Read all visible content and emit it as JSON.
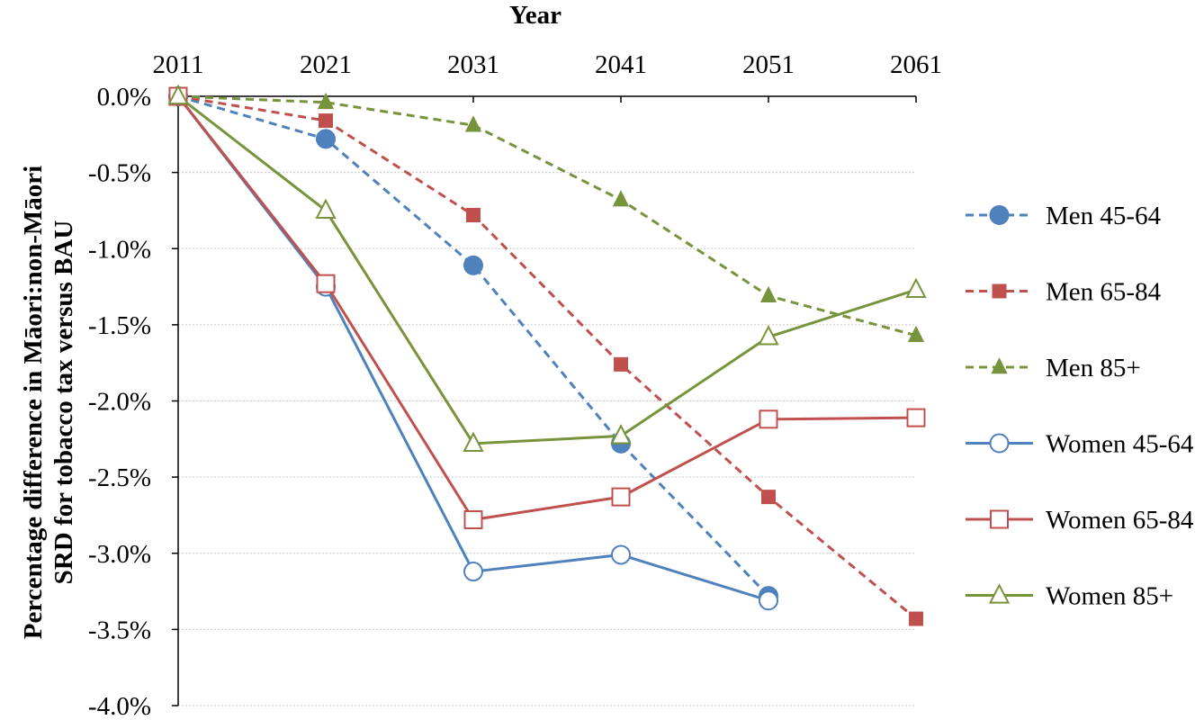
{
  "chart_data": {
    "type": "line",
    "title": "",
    "xlabel": "Year",
    "ylabel_line1": "Percentage difference in  Māori:non-Māori",
    "ylabel_line2": "SRD for tobacco tax versus BAU",
    "x": [
      2011,
      2021,
      2031,
      2041,
      2051,
      2061
    ],
    "xticks": [
      "2011",
      "2021",
      "2031",
      "2041",
      "2051",
      "2061"
    ],
    "ylim": [
      -4.0,
      0.0
    ],
    "yticks": [
      "0.0%",
      "-0.5%",
      "-1.0%",
      "-1.5%",
      "-2.0%",
      "-2.5%",
      "-3.0%",
      "-3.5%",
      "-4.0%"
    ],
    "x_axis_position": "top",
    "grid": "horizontal",
    "legend": "right",
    "series": [
      {
        "name": "Men 45-64",
        "values": [
          0.0,
          -0.28,
          -1.11,
          -2.28,
          -3.28,
          null
        ],
        "color": "#4f81bd",
        "dash": true,
        "marker": "circle",
        "filled": true
      },
      {
        "name": "Men 65-84",
        "values": [
          0.0,
          -0.16,
          -0.78,
          -1.76,
          -2.63,
          -3.43
        ],
        "color": "#c0504d",
        "dash": true,
        "marker": "square",
        "filled": true
      },
      {
        "name": "Men 85+",
        "values": [
          0.0,
          -0.04,
          -0.19,
          -0.68,
          -1.31,
          -1.57
        ],
        "color": "#77933c",
        "dash": true,
        "marker": "triangle",
        "filled": true
      },
      {
        "name": "Women 45-64",
        "values": [
          0.0,
          -1.25,
          -3.12,
          -3.01,
          -3.31,
          null
        ],
        "color": "#4f81bd",
        "dash": false,
        "marker": "circle",
        "filled": false
      },
      {
        "name": "Women 65-84",
        "values": [
          0.0,
          -1.23,
          -2.78,
          -2.63,
          -2.12,
          -2.11
        ],
        "color": "#c0504d",
        "dash": false,
        "marker": "square",
        "filled": false
      },
      {
        "name": "Women 85+",
        "values": [
          0.0,
          -0.75,
          -2.28,
          -2.23,
          -1.58,
          -1.27
        ],
        "color": "#77933c",
        "dash": false,
        "marker": "triangle",
        "filled": false
      }
    ]
  }
}
